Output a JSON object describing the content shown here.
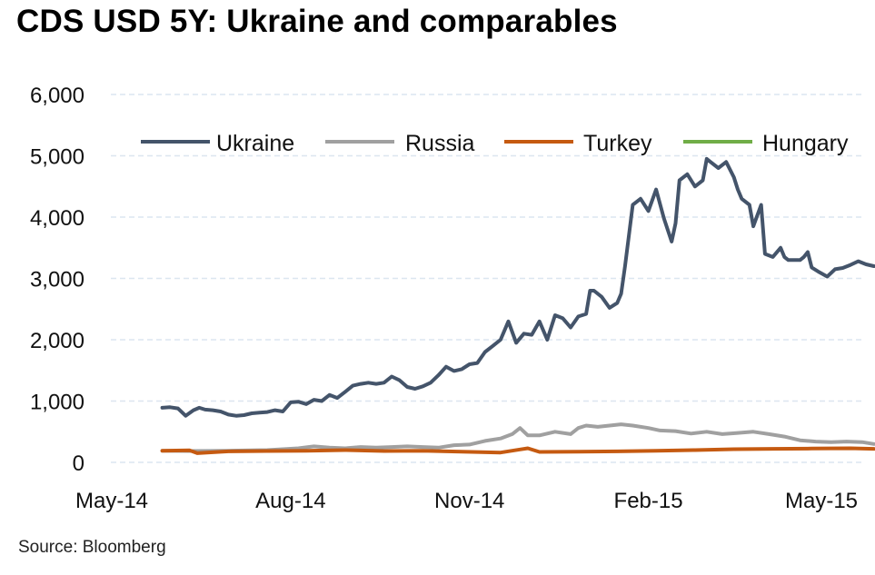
{
  "chart_data": {
    "type": "line",
    "title": "CDS USD 5Y: Ukraine and comparables",
    "source": "Source: Bloomberg",
    "xlabel": "",
    "ylabel": "",
    "ylim": [
      0,
      6000
    ],
    "yticks": [
      0,
      1000,
      2000,
      3000,
      4000,
      5000,
      6000
    ],
    "ytick_labels": [
      "0",
      "1,000",
      "2,000",
      "3,000",
      "4,000",
      "5,000",
      "6,000"
    ],
    "x_origin_date": "2014-05-01",
    "x_unit": "days since 2014-05-01",
    "xlim": [
      0,
      395
    ],
    "xticks": [
      0,
      92,
      184,
      276,
      365
    ],
    "xtick_labels": [
      "May-14",
      "Aug-14",
      "Nov-14",
      "Feb-15",
      "May-15"
    ],
    "grid": "horizontal dashed",
    "legend": "top",
    "series": [
      {
        "name": "Ukraine",
        "color": "#44546a",
        "x": [
          26,
          30,
          34,
          38,
          42,
          45,
          48,
          52,
          56,
          60,
          64,
          68,
          72,
          76,
          80,
          84,
          88,
          92,
          96,
          100,
          104,
          108,
          112,
          116,
          120,
          124,
          128,
          132,
          136,
          140,
          144,
          148,
          152,
          156,
          160,
          164,
          168,
          172,
          176,
          180,
          184,
          188,
          192,
          196,
          200,
          204,
          208,
          212,
          216,
          220,
          224,
          228,
          232,
          236,
          240,
          244,
          246,
          248,
          252,
          256,
          260,
          262,
          264,
          268,
          272,
          276,
          280,
          284,
          288,
          290,
          292,
          296,
          300,
          304,
          306,
          308,
          312,
          316,
          320,
          322,
          324,
          328,
          330,
          334,
          336,
          340,
          344,
          346,
          348,
          350,
          354,
          356,
          358,
          360,
          364,
          368,
          372,
          376,
          380,
          384,
          388,
          392
        ],
        "values": [
          890,
          900,
          880,
          760,
          850,
          890,
          860,
          850,
          830,
          780,
          760,
          770,
          800,
          810,
          820,
          850,
          830,
          980,
          990,
          950,
          1020,
          1000,
          1100,
          1050,
          1150,
          1250,
          1280,
          1300,
          1280,
          1300,
          1400,
          1340,
          1230,
          1200,
          1240,
          1300,
          1420,
          1560,
          1490,
          1520,
          1600,
          1620,
          1800,
          1900,
          2000,
          2300,
          1950,
          2100,
          2080,
          2300,
          2000,
          2400,
          2350,
          2200,
          2380,
          2420,
          2800,
          2800,
          2700,
          2520,
          2600,
          2750,
          3200,
          4200,
          4300,
          4100,
          4450,
          3980,
          3600,
          3900,
          4600,
          4700,
          4500,
          4600,
          4950,
          4900,
          4800,
          4900,
          4650,
          4450,
          4300,
          4200,
          3850,
          4200,
          3400,
          3350,
          3500,
          3350,
          3300,
          3300,
          3300,
          3350,
          3430,
          3180,
          3100,
          3030,
          3150,
          3170,
          3220,
          3280,
          3230,
          3200
        ]
      },
      {
        "name": "Russia",
        "color": "#a0a0a0",
        "x": [
          26,
          40,
          60,
          80,
          96,
          104,
          112,
          120,
          128,
          136,
          144,
          152,
          160,
          168,
          176,
          184,
          192,
          200,
          206,
          210,
          214,
          220,
          228,
          236,
          240,
          244,
          250,
          256,
          262,
          268,
          276,
          282,
          290,
          298,
          306,
          314,
          322,
          330,
          338,
          346,
          354,
          362,
          370,
          378,
          386,
          392
        ],
        "values": [
          190,
          185,
          190,
          200,
          230,
          260,
          240,
          230,
          250,
          240,
          250,
          260,
          250,
          240,
          280,
          290,
          350,
          390,
          460,
          560,
          440,
          440,
          500,
          460,
          560,
          600,
          580,
          600,
          620,
          600,
          560,
          520,
          510,
          470,
          500,
          460,
          480,
          500,
          460,
          420,
          360,
          340,
          330,
          340,
          330,
          300
        ]
      },
      {
        "name": "Turkey",
        "color": "#c55a11",
        "x": [
          26,
          40,
          44,
          60,
          80,
          100,
          120,
          140,
          160,
          180,
          200,
          210,
          214,
          220,
          240,
          260,
          280,
          300,
          320,
          340,
          360,
          380,
          392
        ],
        "values": [
          190,
          195,
          150,
          180,
          185,
          190,
          200,
          185,
          190,
          175,
          160,
          210,
          230,
          170,
          175,
          180,
          190,
          200,
          215,
          220,
          225,
          230,
          220
        ]
      },
      {
        "name": "Hungary",
        "color": "#70ad47",
        "x": [],
        "values": []
      }
    ]
  }
}
